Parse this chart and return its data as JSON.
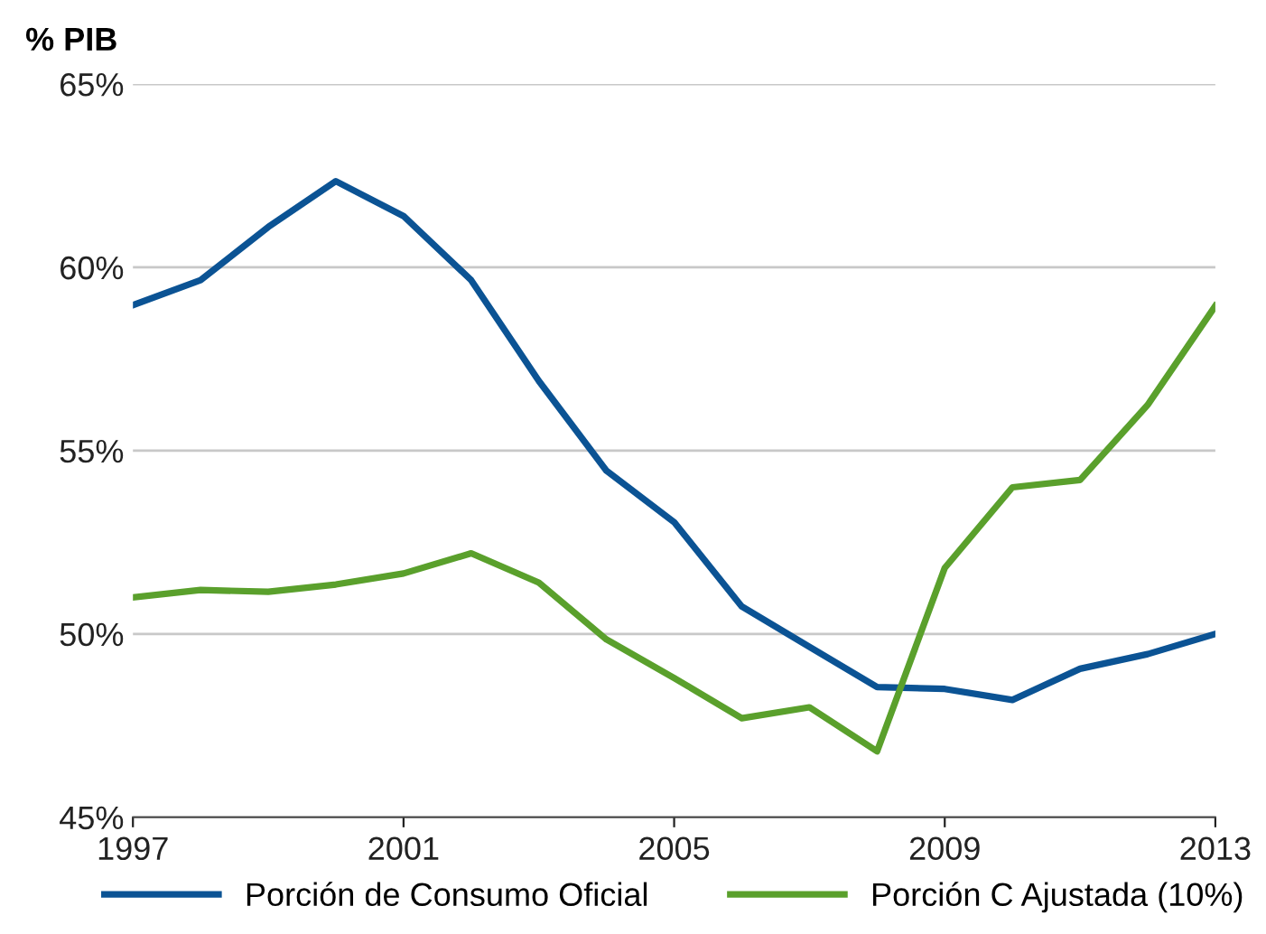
{
  "chart_data": {
    "type": "line",
    "ylabel": "% PIB",
    "x": [
      1997,
      1998,
      1999,
      2000,
      2001,
      2002,
      2003,
      2004,
      2005,
      2006,
      2007,
      2008,
      2009,
      2010,
      2011,
      2012,
      2013
    ],
    "series": [
      {
        "name": "Porción de Consumo Oficial",
        "color": "#0b5394",
        "values": [
          58.97,
          59.65,
          61.1,
          62.35,
          61.4,
          59.65,
          56.9,
          54.45,
          53.05,
          50.75,
          49.65,
          48.55,
          48.5,
          48.2,
          49.05,
          49.45,
          50.0
        ]
      },
      {
        "name": "Porción C Ajustada (10%)",
        "color": "#5aa02c",
        "values": [
          51.0,
          51.2,
          51.15,
          51.35,
          51.65,
          52.2,
          51.4,
          49.85,
          48.8,
          47.7,
          48.0,
          46.8,
          51.8,
          54.0,
          54.2,
          56.25,
          58.95
        ]
      }
    ],
    "xlim": [
      1997,
      2013
    ],
    "xticks": [
      1997,
      2001,
      2005,
      2009,
      2013
    ],
    "ylim": [
      45,
      65
    ],
    "yticks": [
      {
        "value": 45,
        "label": "45%"
      },
      {
        "value": 50,
        "label": "50%"
      },
      {
        "value": 55,
        "label": "55%"
      },
      {
        "value": 60,
        "label": "60%"
      },
      {
        "value": 65,
        "label": "65%"
      }
    ],
    "grid": "y",
    "legend": "bottom",
    "marker": "none",
    "line_style": "solid"
  }
}
